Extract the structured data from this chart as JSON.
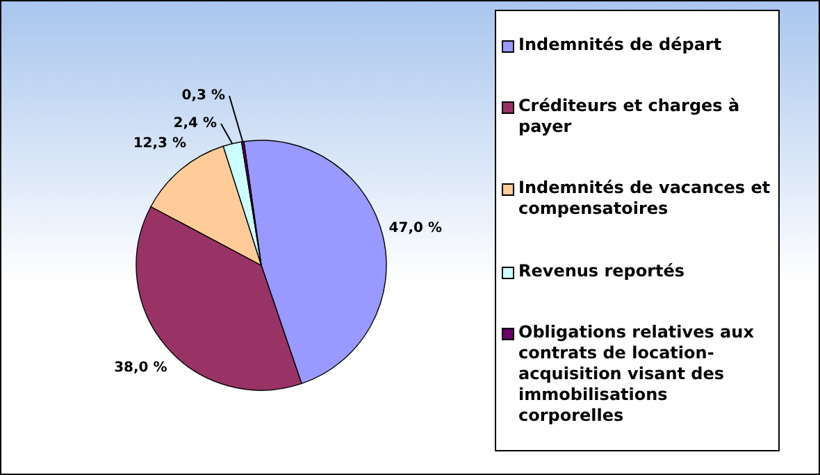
{
  "chart_data": {
    "type": "pie",
    "categories": [
      "Indemnités de départ",
      "Créditeurs et charges à payer",
      "Indemnités de vacances et compensatoires",
      "Revenus reportés",
      "Obligations relatives aux contrats de location-acquisition visant des immobilisations corporelles"
    ],
    "values": [
      47.0,
      38.0,
      12.3,
      2.4,
      0.3
    ],
    "colors": [
      "#9999ff",
      "#993366",
      "#ffcc99",
      "#ccffff",
      "#660066"
    ],
    "value_labels": [
      "47,0 %",
      "38,0 %",
      "12,3 %",
      "2,4 %",
      "0,3 %"
    ],
    "legend": "right"
  }
}
